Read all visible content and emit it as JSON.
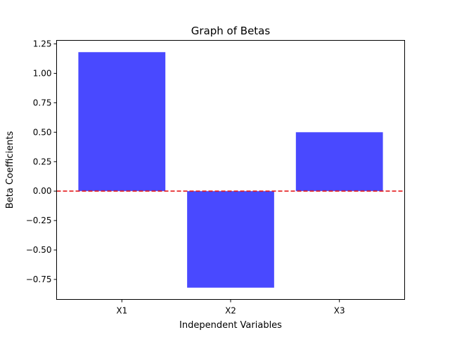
{
  "chart_data": {
    "type": "bar",
    "title": "Graph of Betas",
    "xlabel": "Independent Variables",
    "ylabel": "Beta Coefficients",
    "categories": [
      "X1",
      "X2",
      "X3"
    ],
    "values": [
      1.18,
      -0.82,
      0.5
    ],
    "ylim": [
      -0.92,
      1.28
    ],
    "yticks": [
      -0.75,
      -0.5,
      -0.25,
      0.0,
      0.25,
      0.5,
      0.75,
      1.0,
      1.25
    ],
    "ytick_labels": [
      "−0.75",
      "−0.50",
      "−0.25",
      "0.00",
      "0.25",
      "0.50",
      "0.75",
      "1.00",
      "1.25"
    ],
    "bar_color": "#4949ff",
    "reference_line": {
      "y": 0,
      "color": "#e41a1c",
      "style": "dashed"
    },
    "grid": false,
    "legend": "none"
  }
}
